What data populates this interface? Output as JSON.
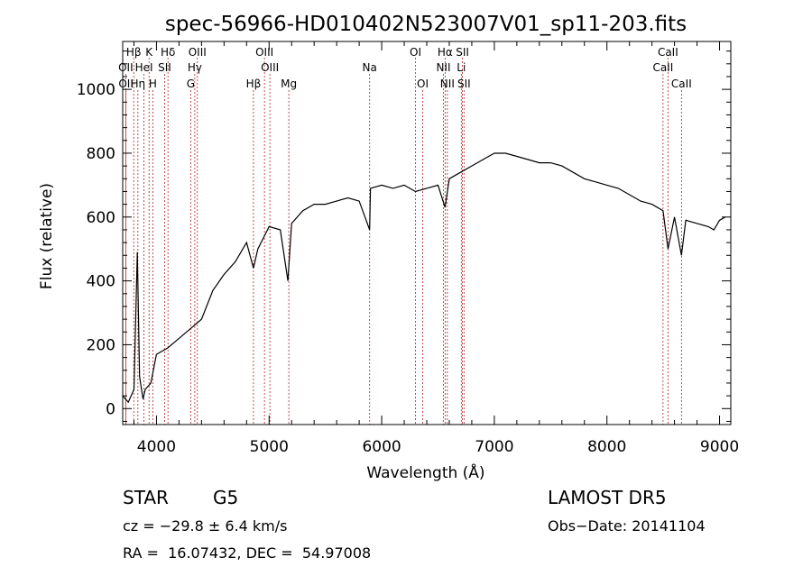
{
  "chart_data": {
    "type": "line",
    "title": "spec-56966-HD010402N523007V01_sp11-203.fits",
    "xlabel": "Wavelength (Å)",
    "ylabel": "Flux (relative)",
    "xlim": [
      3700,
      9100
    ],
    "ylim": [
      -50,
      1150
    ],
    "xticks": [
      4000,
      5000,
      6000,
      7000,
      8000,
      9000
    ],
    "yticks": [
      0,
      200,
      400,
      600,
      800,
      1000
    ],
    "grid": false,
    "series": [
      {
        "x": [
          3700,
          3750,
          3800,
          3830,
          3850,
          3880,
          3900,
          3950,
          4000,
          4100,
          4200,
          4300,
          4400,
          4500,
          4600,
          4700,
          4800,
          4861,
          4900,
          5000,
          5100,
          5167,
          5200,
          5300,
          5400,
          5500,
          5600,
          5700,
          5800,
          5893,
          5900,
          6000,
          6100,
          6200,
          6300,
          6400,
          6500,
          6563,
          6600,
          6700,
          6800,
          6900,
          7000,
          7100,
          7200,
          7300,
          7400,
          7500,
          7600,
          7700,
          7800,
          7900,
          8000,
          8100,
          8200,
          8300,
          8400,
          8498,
          8542,
          8600,
          8662,
          8700,
          8800,
          8900,
          8950,
          9000,
          9050
        ],
        "y": [
          40,
          20,
          60,
          490,
          100,
          30,
          60,
          80,
          170,
          190,
          220,
          250,
          280,
          370,
          420,
          460,
          520,
          440,
          500,
          570,
          560,
          400,
          580,
          620,
          640,
          640,
          650,
          660,
          650,
          560,
          690,
          700,
          690,
          700,
          680,
          690,
          700,
          630,
          720,
          740,
          760,
          780,
          800,
          800,
          790,
          780,
          770,
          770,
          760,
          740,
          720,
          710,
          700,
          690,
          670,
          650,
          640,
          620,
          500,
          600,
          480,
          590,
          580,
          570,
          560,
          590,
          600
        ]
      }
    ],
    "lines": {
      "row1": [
        {
          "label": "Hβ",
          "x": 3798
        },
        {
          "label": "K",
          "x": 3934
        },
        {
          "label": "Hδ",
          "x": 4102
        },
        {
          "label": "OIII",
          "x": 4363
        },
        {
          "label": "OIII",
          "x": 4959
        },
        {
          "label": "OI",
          "x": 6300
        },
        {
          "label": "Hα",
          "x": 6563
        },
        {
          "label": "SII",
          "x": 6717
        },
        {
          "label": "CaII",
          "x": 8542
        }
      ],
      "row2": [
        {
          "label": "OII",
          "x": 3727
        },
        {
          "label": "HeI",
          "x": 3889
        },
        {
          "label": "SII",
          "x": 4072
        },
        {
          "label": "Hγ",
          "x": 4340
        },
        {
          "label": "OIII",
          "x": 5007
        },
        {
          "label": "Na",
          "x": 5893
        },
        {
          "label": "NII",
          "x": 6548
        },
        {
          "label": "Li",
          "x": 6707
        },
        {
          "label": "CaII",
          "x": 8498
        }
      ],
      "row3": [
        {
          "label": "OII",
          "x": 3729
        },
        {
          "label": "Hη",
          "x": 3835
        },
        {
          "label": "H",
          "x": 3968
        },
        {
          "label": "G",
          "x": 4304
        },
        {
          "label": "Hβ",
          "x": 4861
        },
        {
          "label": "Mg",
          "x": 5175
        },
        {
          "label": "OI",
          "x": 6364
        },
        {
          "label": "NII",
          "x": 6583
        },
        {
          "label": "SII",
          "x": 6731
        },
        {
          "label": "CaII",
          "x": 8662
        }
      ]
    }
  },
  "info": {
    "object_type": "STAR",
    "subclass": "G5",
    "survey": "LAMOST DR5",
    "cz": "cz = −29.8 ± 6.4 km/s",
    "obs_date": "Obs−Date: 20141104",
    "coords": "RA =  16.07432, DEC =  54.97008"
  },
  "colors": {
    "spectrum": "#000000",
    "line_markers": "#b22222",
    "axes": "#000000"
  }
}
